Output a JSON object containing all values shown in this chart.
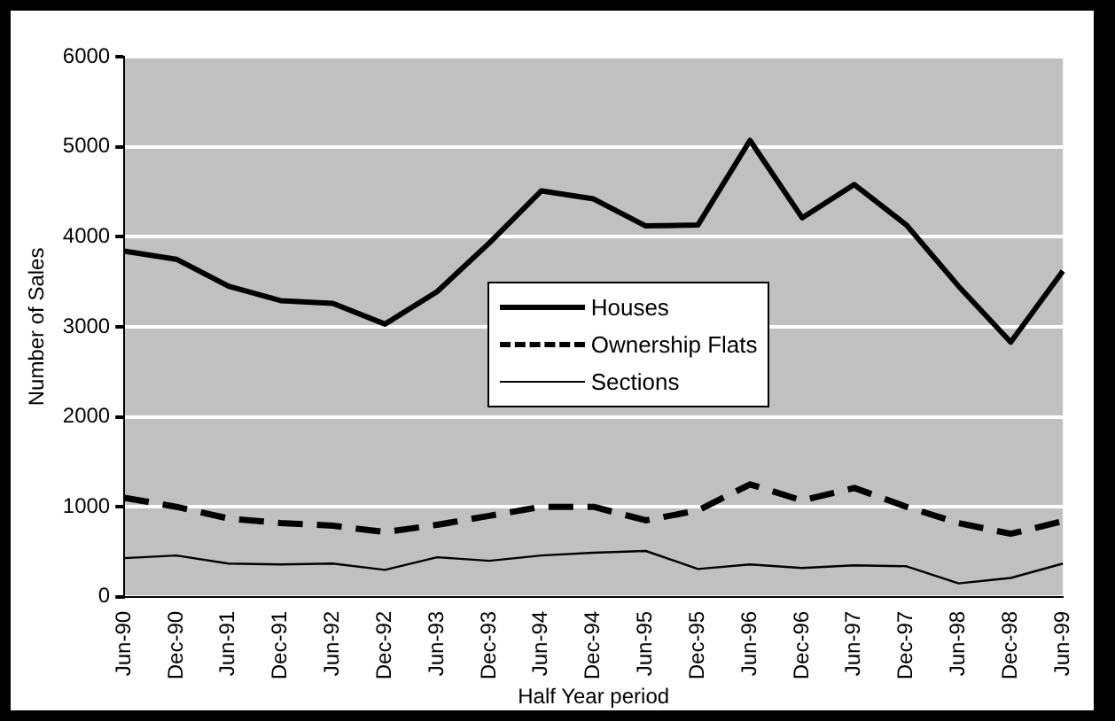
{
  "chart_data": {
    "type": "line",
    "xlabel": "Half Year period",
    "ylabel": "Number of Sales",
    "categories": [
      "Jun-90",
      "Dec-90",
      "Jun-91",
      "Dec-91",
      "Jun-92",
      "Dec-92",
      "Jun-93",
      "Dec-93",
      "Jun-94",
      "Dec-94",
      "Jun-95",
      "Dec-95",
      "Jun-96",
      "Dec-96",
      "Jun-97",
      "Dec-97",
      "Jun-98",
      "Dec-98",
      "Jun-99"
    ],
    "series": [
      {
        "name": "Houses",
        "color": "#000000",
        "line_style": "solid",
        "values": [
          3840,
          3750,
          3450,
          3290,
          3260,
          3030,
          3390,
          3930,
          4510,
          4420,
          4120,
          4130,
          5070,
          4210,
          4580,
          4130,
          3450,
          2830,
          3620
        ]
      },
      {
        "name": "Ownership Flats",
        "color": "#000000",
        "line_style": "dashed",
        "values": [
          1100,
          1000,
          870,
          820,
          790,
          720,
          800,
          900,
          1000,
          1000,
          850,
          960,
          1250,
          1070,
          1210,
          1000,
          820,
          700,
          840
        ]
      },
      {
        "name": "Sections",
        "color": "#000000",
        "line_style": "solid",
        "values": [
          430,
          460,
          370,
          360,
          370,
          300,
          440,
          400,
          460,
          490,
          510,
          310,
          360,
          320,
          350,
          340,
          150,
          210,
          370
        ]
      }
    ],
    "ylim": [
      0,
      6000
    ],
    "yticks": [
      0,
      1000,
      2000,
      3000,
      4000,
      5000,
      6000
    ],
    "grid": "y",
    "legend": "center",
    "marker": "none"
  }
}
